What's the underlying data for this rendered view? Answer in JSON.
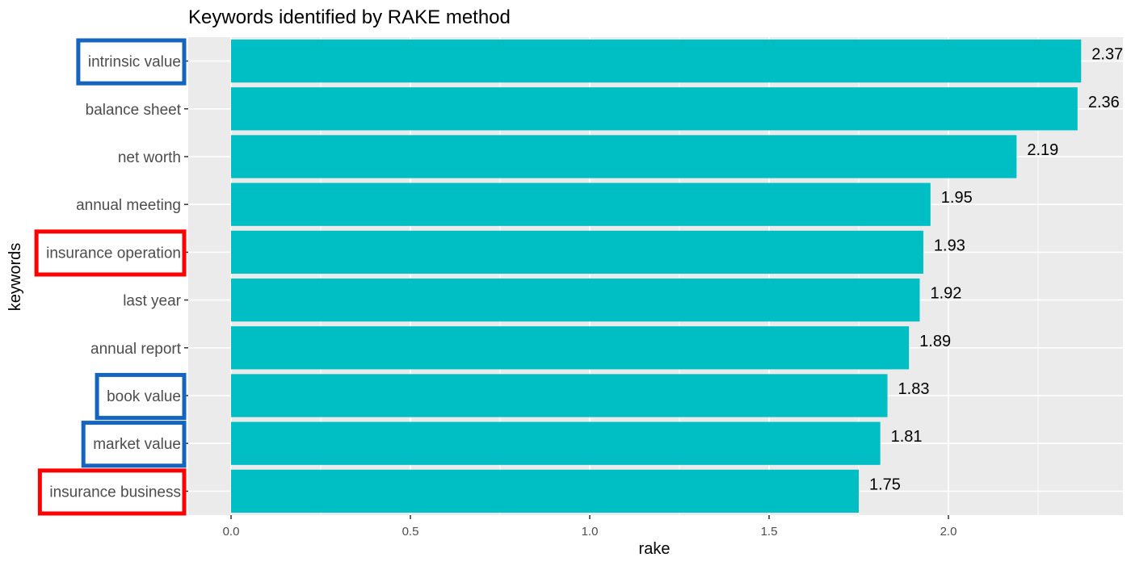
{
  "chart_data": {
    "type": "bar",
    "orientation": "horizontal",
    "title": "Keywords identified by RAKE method",
    "xlabel": "rake",
    "ylabel": "keywords",
    "categories": [
      "intrinsic value",
      "balance sheet",
      "net worth",
      "annual meeting",
      "insurance operation",
      "last year",
      "annual report",
      "book value",
      "market value",
      "insurance business"
    ],
    "values": [
      2.37,
      2.36,
      2.19,
      1.95,
      1.93,
      1.92,
      1.89,
      1.83,
      1.81,
      1.75
    ],
    "data_labels": [
      "2.37",
      "2.36",
      "2.19",
      "1.95",
      "1.93",
      "1.92",
      "1.89",
      "1.83",
      "1.81",
      "1.75"
    ],
    "x_ticks": [
      0.0,
      0.5,
      1.0,
      1.5,
      2.0
    ],
    "x_tick_labels": [
      "0.0",
      "0.5",
      "1.0",
      "1.5",
      "2.0"
    ],
    "xlim": [
      -0.12,
      2.49
    ],
    "grid": true,
    "bar_color": "#00BFC4",
    "panel_background": "#EBEBEB",
    "highlights": [
      {
        "category": "intrinsic value",
        "color": "#1565C0"
      },
      {
        "category": "insurance operation",
        "color": "#FF0000"
      },
      {
        "category": "book value",
        "color": "#1565C0"
      },
      {
        "category": "market value",
        "color": "#1565C0"
      },
      {
        "category": "insurance business",
        "color": "#FF0000"
      }
    ]
  }
}
